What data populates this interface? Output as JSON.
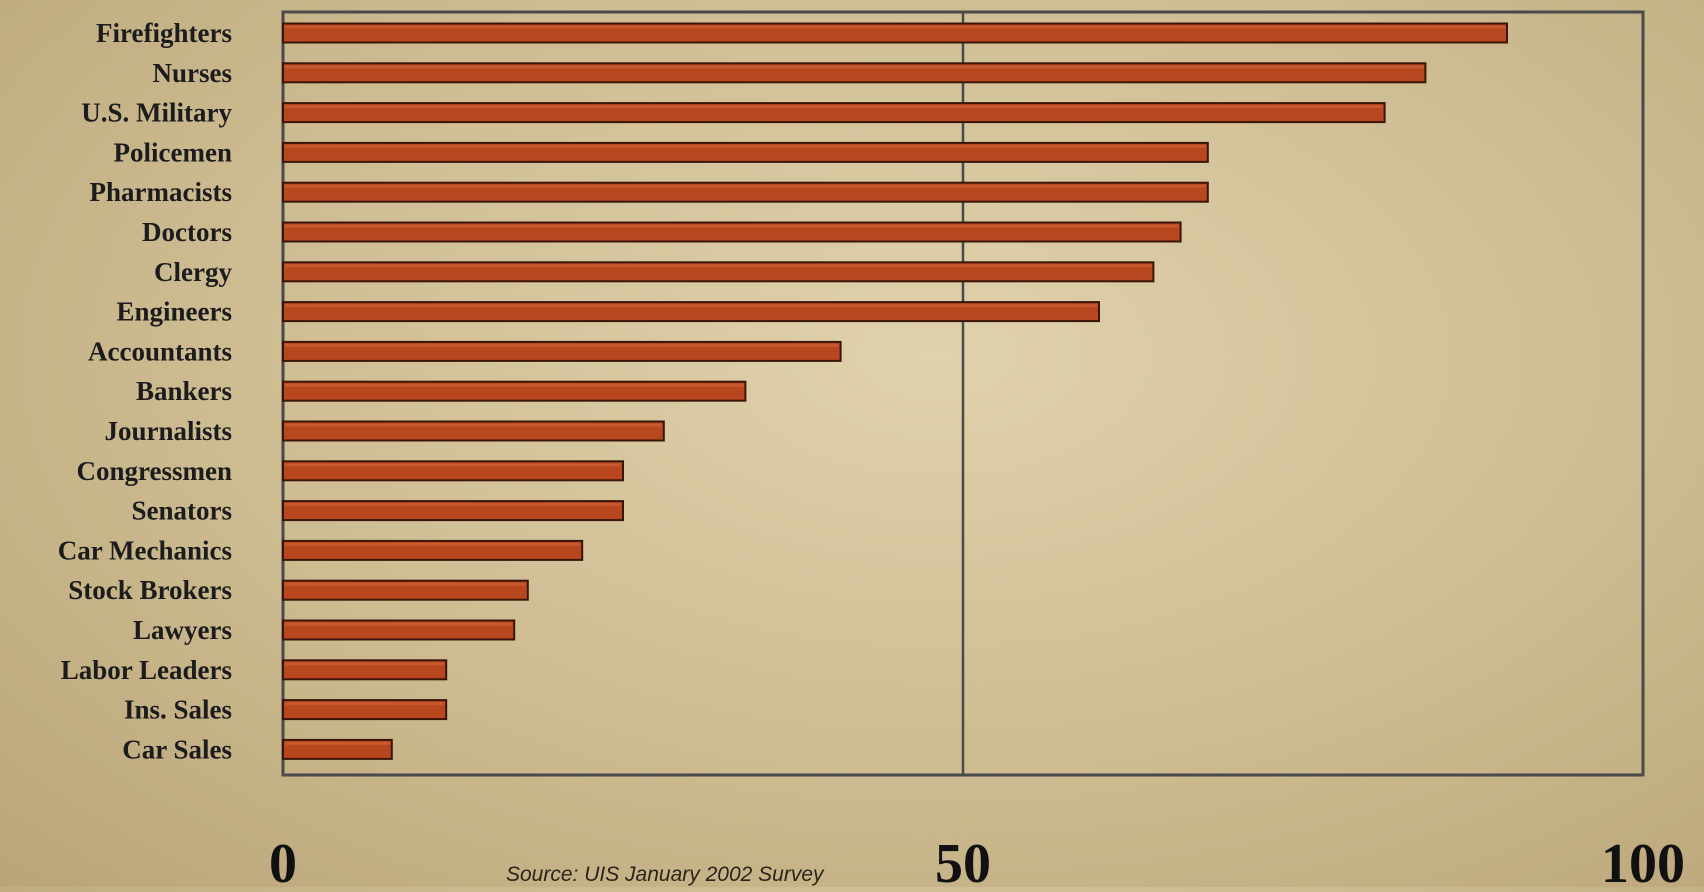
{
  "chart_data": {
    "type": "bar",
    "orientation": "horizontal",
    "categories": [
      "Firefighters",
      "Nurses",
      "U.S. Military",
      "Policemen",
      "Pharmacists",
      "Doctors",
      "Clergy",
      "Engineers",
      "Accountants",
      "Bankers",
      "Journalists",
      "Congressmen",
      "Senators",
      "Car Mechanics",
      "Stock Brokers",
      "Lawyers",
      "Labor Leaders",
      "Ins. Sales",
      "Car Sales"
    ],
    "values": [
      90,
      84,
      81,
      68,
      68,
      66,
      64,
      60,
      41,
      34,
      28,
      25,
      25,
      22,
      18,
      17,
      12,
      12,
      8
    ],
    "xlim": [
      0,
      100
    ],
    "xticks": [
      "0",
      "50",
      "100"
    ],
    "title": "",
    "xlabel": "",
    "ylabel": "",
    "grid": "vertical line at 50",
    "legend": "none",
    "bar_color": "#b8461f",
    "bar_edge_color": "#3a1608",
    "axis_color": "#4a4a4a"
  },
  "source": "Source: UIS January 2002 Survey"
}
